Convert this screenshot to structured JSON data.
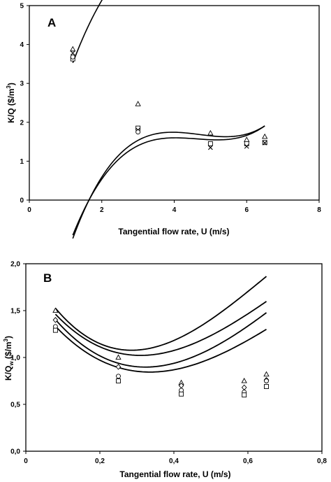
{
  "chart_data": [
    {
      "type": "scatter",
      "panel_label": "A",
      "xlabel": "Tangential flow rate, U (m/s)",
      "ylabel": "K/Q ($/m",
      "ylabel_sup": "3",
      "ylabel_end": ")",
      "xlim": [
        0,
        8
      ],
      "ylim": [
        0,
        5
      ],
      "x_ticks": [
        "0",
        "2",
        "4",
        "6",
        "8"
      ],
      "y_ticks": [
        "0",
        "1",
        "2",
        "3",
        "4",
        "5"
      ],
      "grid": false,
      "series": [
        {
          "marker": "triangle",
          "x": [
            1.2,
            3.0,
            5.0,
            6.0,
            6.5
          ],
          "y": [
            3.88,
            2.47,
            1.72,
            1.55,
            1.63
          ],
          "fit": [
            0.0734,
            -0.9009,
            4.3162,
            -0.4817
          ]
        },
        {
          "marker": "square",
          "x": [
            1.2,
            3.0,
            5.0,
            6.0,
            6.5
          ],
          "y": [
            3.63,
            1.85,
            1.45,
            1.45,
            1.48
          ],
          "fit": [
            0.0727,
            -1.0223,
            4.6744,
            -5.2497
          ]
        },
        {
          "marker": "x",
          "x": [
            1.2,
            3.0,
            5.0,
            6.0,
            6.5
          ],
          "y": [
            3.78,
            1.8,
            1.35,
            1.38,
            1.47
          ],
          "fit": [
            0.0684,
            -0.9458,
            4.2908,
            -4.8075
          ]
        },
        {
          "marker": "circle",
          "x": [
            1.2,
            3.0
          ],
          "y": [
            3.68,
            1.75
          ],
          "fit": null
        }
      ]
    },
    {
      "type": "scatter",
      "panel_label": "B",
      "xlabel": "Tangential flow rate,  U (m/s)",
      "ylabel": "K/Q",
      "ylabel_sub": "w",
      "ylabel_mid": " ($/m",
      "ylabel_sup": "3",
      "ylabel_end": ")",
      "xlim": [
        0,
        0.8
      ],
      "ylim": [
        0,
        2
      ],
      "x_ticks": [
        "0",
        "0,2",
        "0,4",
        "0,6",
        "0,8"
      ],
      "y_ticks": [
        "0,0",
        "0,5",
        "1,0",
        "1,5",
        "2,0"
      ],
      "grid": false,
      "series": [
        {
          "marker": "triangle",
          "x": [
            0.08,
            0.25,
            0.42,
            0.59,
            0.65
          ],
          "y": [
            1.5,
            1.0,
            0.73,
            0.75,
            0.82
          ],
          "fit": [
            -8.1683,
            15.9126,
            -7.0926,
            1.9952
          ]
        },
        {
          "marker": "diamond",
          "x": [
            0.08,
            0.25,
            0.42,
            0.59,
            0.65
          ],
          "y": [
            1.4,
            0.9,
            0.7,
            0.68,
            0.76
          ],
          "fit": [
            -5.8575,
            12.4108,
            -6.004,
            1.8653
          ]
        },
        {
          "marker": "circle",
          "x": [
            0.08,
            0.25,
            0.42,
            0.59,
            0.65
          ],
          "y": [
            1.33,
            0.8,
            0.65,
            0.63,
            0.75
          ],
          "fit": [
            -5.5405,
            12.6049,
            -6.4081,
            1.8391
          ]
        },
        {
          "marker": "square",
          "x": [
            0.08,
            0.25,
            0.42,
            0.59,
            0.65
          ],
          "y": [
            1.29,
            0.75,
            0.61,
            0.6,
            0.69
          ],
          "fit": [
            -5.0316,
            11.2622,
            -5.8599,
            1.7328
          ]
        }
      ]
    }
  ]
}
